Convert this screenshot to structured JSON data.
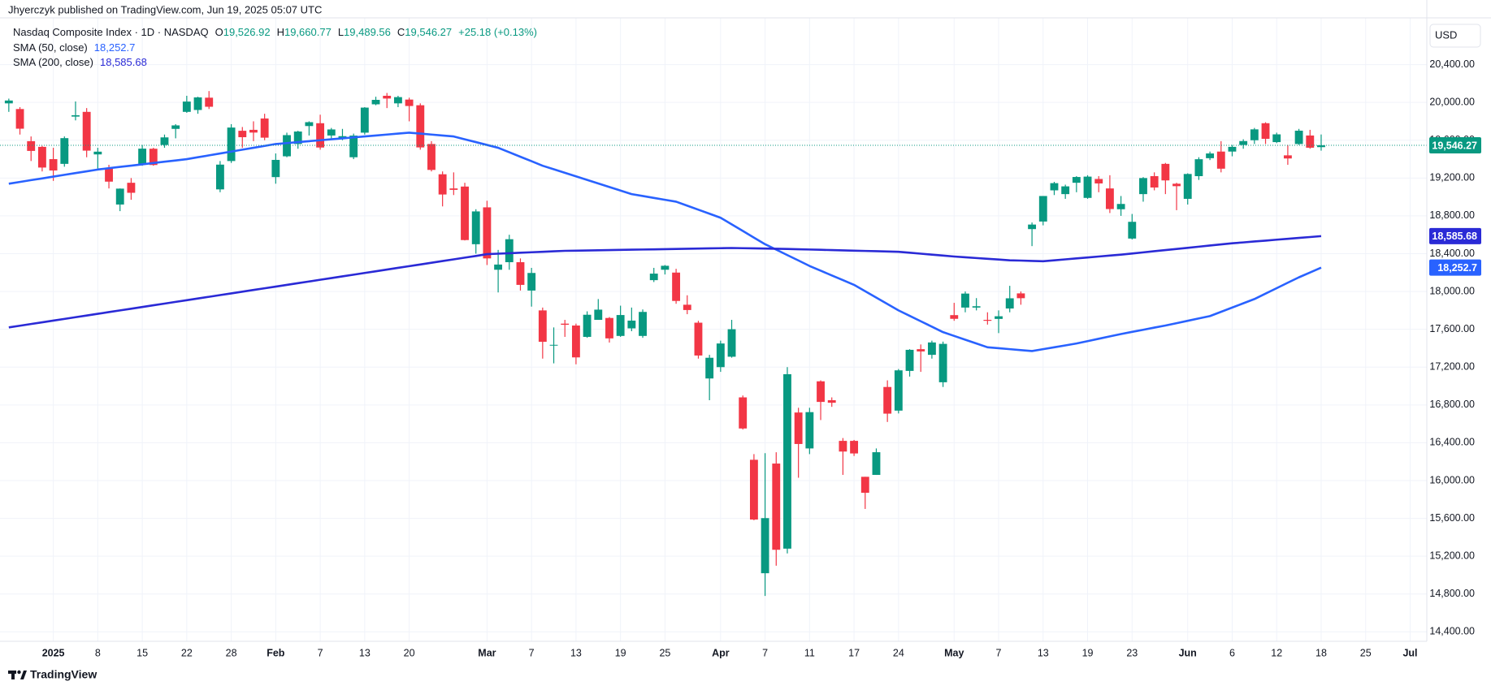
{
  "publisher": "Jhyerczyk published on TradingView.com, Jun 19, 2025 05:07 UTC",
  "currency": "USD",
  "brand": "TradingView",
  "chart_data": {
    "type": "candlestick",
    "symbol": "Nasdaq Composite Index · 1D · NASDAQ",
    "ohlc_legend": [
      {
        "key": "O",
        "text": "19,526.92"
      },
      {
        "key": "H",
        "text": "19,660.77"
      },
      {
        "key": "L",
        "text": "19,489.56"
      },
      {
        "key": "C",
        "text": "19,546.27"
      }
    ],
    "change": "+25.18 (+0.13%)",
    "categories": [
      null,
      null,
      null,
      null,
      "2025",
      null,
      null,
      null,
      "8",
      null,
      null,
      null,
      "15",
      null,
      null,
      null,
      "22",
      null,
      null,
      null,
      "28",
      null,
      null,
      null,
      "Feb",
      null,
      null,
      null,
      "7",
      null,
      null,
      null,
      "13",
      null,
      null,
      null,
      "20",
      null,
      null,
      null,
      null,
      null,
      null,
      "Mar",
      null,
      null,
      null,
      "7",
      null,
      null,
      null,
      "13",
      null,
      null,
      null,
      "19",
      null,
      null,
      null,
      "25",
      null,
      null,
      null,
      null,
      "Apr",
      null,
      null,
      null,
      "7",
      null,
      null,
      null,
      "11",
      null,
      null,
      null,
      "17",
      null,
      null,
      null,
      "24",
      null,
      null,
      null,
      null,
      "May",
      null,
      null,
      null,
      "7",
      null,
      null,
      null,
      "13",
      null,
      null,
      null,
      "19",
      null,
      null,
      null,
      "23",
      null,
      null,
      null,
      null,
      "Jun",
      null,
      null,
      null,
      "6",
      null,
      null,
      null,
      "12",
      null,
      null,
      null,
      "18",
      null,
      null,
      null,
      "25",
      null,
      null,
      null,
      "Jul",
      null
    ],
    "open": [
      19990,
      19930,
      19590,
      19530,
      19400,
      19350,
      19850,
      19900,
      19450,
      19310,
      18920,
      19150,
      19350,
      19510,
      19550,
      19720,
      19900,
      19920,
      20050,
      19080,
      19380,
      19700,
      19710,
      19830,
      19210,
      19430,
      19560,
      19750,
      19780,
      19650,
      19620,
      19420,
      19680,
      19980,
      20070,
      19990,
      20030,
      19970,
      19560,
      19240,
      19090,
      19110,
      18500,
      18890,
      18230,
      18310,
      18310,
      18010,
      17800,
      17430,
      17660,
      17640,
      17520,
      17700,
      17720,
      17530,
      17610,
      17530,
      18120,
      18230,
      18200,
      17860,
      17670,
      17080,
      17200,
      17310,
      16880,
      16220,
      15020,
      16180,
      15280,
      16720,
      16340,
      17050,
      16850,
      16420,
      16420,
      16040,
      16060,
      16990,
      16740,
      17160,
      17390,
      17330,
      17040,
      17750,
      17830,
      17830,
      17700,
      17710,
      17820,
      17980,
      18660,
      18740,
      19070,
      19030,
      19150,
      18990,
      19190,
      19090,
      18870,
      18560,
      19030,
      19220,
      19350,
      19140,
      18980,
      19220,
      19410,
      19480,
      19480,
      19550,
      19600,
      19780,
      19580,
      19440,
      19560,
      19650,
      19526.92,
      null,
      null,
      null,
      null,
      null,
      null,
      null,
      null,
      null
    ],
    "high": [
      20040,
      19950,
      19640,
      19540,
      19520,
      19640,
      20010,
      19940,
      19520,
      19340,
      19090,
      19200,
      19550,
      19520,
      19660,
      19770,
      20070,
      20060,
      20120,
      19380,
      19770,
      19740,
      19800,
      19880,
      19460,
      19680,
      19700,
      19800,
      19870,
      19730,
      19720,
      19670,
      19950,
      20060,
      20100,
      20070,
      20050,
      19990,
      19590,
      19270,
      19260,
      19150,
      18870,
      18960,
      18440,
      18600,
      18350,
      18250,
      17830,
      17620,
      17700,
      17660,
      17790,
      17920,
      17730,
      17850,
      17830,
      17810,
      18250,
      18280,
      18240,
      17960,
      17690,
      17330,
      17480,
      17700,
      16900,
      16280,
      16290,
      16300,
      17200,
      16770,
      16770,
      17060,
      16880,
      16450,
      16430,
      16040,
      16340,
      17060,
      17180,
      17390,
      17440,
      17480,
      17470,
      17880,
      18000,
      17930,
      17780,
      17800,
      18060,
      18000,
      18730,
      19010,
      19160,
      19130,
      19220,
      19230,
      19220,
      19230,
      19010,
      18820,
      19210,
      19260,
      19360,
      19150,
      19250,
      19420,
      19480,
      19590,
      19550,
      19610,
      19730,
      19790,
      19680,
      19550,
      19720,
      19710,
      19660.77,
      null,
      null,
      null,
      null,
      null,
      null,
      null,
      null,
      null
    ],
    "low": [
      19900,
      19660,
      19380,
      19270,
      19170,
      19320,
      19810,
      19420,
      19300,
      19090,
      18850,
      18970,
      19330,
      19330,
      19520,
      19620,
      19890,
      19880,
      19930,
      19050,
      19360,
      19520,
      19590,
      19600,
      19140,
      19420,
      19510,
      19650,
      19500,
      19620,
      19600,
      19400,
      19660,
      19970,
      19940,
      19950,
      19800,
      19500,
      19270,
      18900,
      19020,
      18540,
      18400,
      18280,
      17990,
      18230,
      18010,
      17840,
      17290,
      17240,
      17520,
      17230,
      17510,
      17700,
      17460,
      17520,
      17580,
      17510,
      18100,
      18180,
      17870,
      17760,
      17290,
      16850,
      17150,
      17300,
      16540,
      15580,
      14780,
      15100,
      15230,
      16030,
      16280,
      16640,
      16780,
      16060,
      16260,
      15700,
      16060,
      16620,
      16710,
      17100,
      17150,
      17290,
      16990,
      17690,
      17780,
      17800,
      17650,
      17560,
      17780,
      17860,
      18480,
      18700,
      19020,
      18980,
      19050,
      18980,
      19050,
      18830,
      18800,
      18550,
      18950,
      19070,
      19030,
      18860,
      18920,
      19180,
      19390,
      19260,
      19430,
      19510,
      19560,
      19560,
      19570,
      19340,
      19550,
      19510,
      19489.56,
      null,
      null,
      null,
      null,
      null,
      null,
      null,
      null,
      null
    ],
    "close": [
      20020,
      19722,
      19487,
      19311,
      19280,
      19622,
      19864,
      19490,
      19479,
      19162,
      19088,
      19044,
      19511,
      19338,
      19630,
      19757,
      20009,
      20053,
      19954,
      19342,
      19734,
      19632,
      19681,
      19627,
      19392,
      19654,
      19692,
      19791,
      19523,
      19714,
      19643,
      19649,
      19945,
      20027,
      20041,
      20056,
      19962,
      19524,
      19286,
      19026,
      19075,
      18544,
      18847,
      18350,
      18285,
      18553,
      18070,
      18196,
      17468,
      17436,
      17648,
      17303,
      17754,
      17808,
      17504,
      17751,
      17692,
      17784,
      18189,
      18272,
      17900,
      17804,
      17323,
      17299,
      17450,
      17601,
      16551,
      15588,
      15603,
      15268,
      17125,
      16387,
      16724,
      16832,
      16823,
      16307,
      16287,
      15871,
      16300,
      16708,
      17166,
      17383,
      17366,
      17461,
      17446,
      17711,
      17978,
      17844,
      17690,
      17738,
      17928,
      17929,
      18708,
      19010,
      19146,
      19112,
      19211,
      19215,
      19143,
      18872,
      18926,
      18737,
      19200,
      19100,
      19175,
      19114,
      19243,
      19399,
      19460,
      19299,
      19530,
      19591,
      19715,
      19615,
      19662,
      19407,
      19701,
      19521,
      19546.27,
      null,
      null,
      null,
      null,
      null,
      null,
      null,
      null,
      null
    ],
    "last_value_label": "19,546.27",
    "up_color": "#089981",
    "down_color": "#f23645",
    "lines": [
      {
        "name": "SMA (50, close)",
        "color": "#2962ff",
        "last_value_label": "18,252.7",
        "values": [
          19140,
          19159,
          19178,
          19196,
          19215,
          19234,
          19253,
          19271,
          19290,
          19304,
          19318,
          19331,
          19345,
          19359,
          19373,
          19386,
          19400,
          19420,
          19440,
          19460,
          19480,
          19500,
          19520,
          19540,
          19560,
          19570,
          19580,
          19590,
          19600,
          19610,
          19620,
          19630,
          19640,
          19650,
          19660,
          19670,
          19680,
          19670,
          19660,
          19650,
          19640,
          19610,
          19580,
          19550,
          19520,
          19473,
          19425,
          19378,
          19330,
          19293,
          19255,
          19218,
          19180,
          19143,
          19105,
          19068,
          19030,
          19010,
          18990,
          18970,
          18950,
          18908,
          18865,
          18823,
          18780,
          18710,
          18640,
          18570,
          18500,
          18443,
          18385,
          18328,
          18270,
          18220,
          18170,
          18120,
          18070,
          18003,
          17935,
          17868,
          17800,
          17743,
          17685,
          17628,
          17570,
          17530,
          17490,
          17450,
          17410,
          17400,
          17390,
          17380,
          17370,
          17390,
          17410,
          17430,
          17450,
          17475,
          17500,
          17525,
          17550,
          17573,
          17595,
          17618,
          17640,
          17665,
          17690,
          17715,
          17740,
          17785,
          17830,
          17875,
          17920,
          17978,
          18035,
          18093,
          18150,
          18201,
          18252.7,
          null,
          null,
          null,
          null,
          null,
          null,
          null,
          null,
          null
        ]
      },
      {
        "name": "SMA (200, close)",
        "color": "#2a2ad6",
        "last_value_label": "18,585.68",
        "values": [
          17620,
          17638,
          17656,
          17674,
          17692,
          17710,
          17728,
          17746,
          17764,
          17782,
          17800,
          17818,
          17836,
          17854,
          17872,
          17890,
          17908,
          17926,
          17944,
          17962,
          17980,
          17998,
          18016,
          18034,
          18052,
          18070,
          18088,
          18106,
          18124,
          18142,
          18160,
          18178,
          18196,
          18214,
          18232,
          18250,
          18268,
          18286,
          18304,
          18322,
          18340,
          18358,
          18376,
          18395,
          18400,
          18405,
          18410,
          18415,
          18420,
          18425,
          18430,
          18432,
          18434,
          18436,
          18438,
          18440,
          18442,
          18444,
          18446,
          18448,
          18450,
          18452,
          18454,
          18456,
          18458,
          18460,
          18458,
          18456,
          18454,
          18452,
          18450,
          18447,
          18444,
          18441,
          18438,
          18435,
          18432,
          18429,
          18426,
          18423,
          18420,
          18410,
          18400,
          18390,
          18380,
          18370,
          18362,
          18354,
          18346,
          18338,
          18330,
          18327,
          18323,
          18320,
          18330,
          18340,
          18350,
          18360,
          18370,
          18380,
          18390,
          18402,
          18414,
          18426,
          18438,
          18450,
          18462,
          18474,
          18486,
          18498,
          18510,
          18519,
          18529,
          18538,
          18548,
          18557,
          18567,
          18576,
          18585.68,
          null,
          null,
          null,
          null,
          null,
          null,
          null,
          null,
          null
        ]
      }
    ],
    "ylim": [
      14300,
      20860
    ],
    "yticks": [
      {
        "value": 14400,
        "label": "14,400.00"
      },
      {
        "value": 14800,
        "label": "14,800.00"
      },
      {
        "value": 15200,
        "label": "15,200.00"
      },
      {
        "value": 15600,
        "label": "15,600.00"
      },
      {
        "value": 16000,
        "label": "16,000.00"
      },
      {
        "value": 16400,
        "label": "16,400.00"
      },
      {
        "value": 16800,
        "label": "16,800.00"
      },
      {
        "value": 17200,
        "label": "17,200.00"
      },
      {
        "value": 17600,
        "label": "17,600.00"
      },
      {
        "value": 18000,
        "label": "18,000.00"
      },
      {
        "value": 18400,
        "label": "18,400.00"
      },
      {
        "value": 18800,
        "label": "18,800.00"
      },
      {
        "value": 19200,
        "label": "19,200.00"
      },
      {
        "value": 19600,
        "label": "19,600.00"
      },
      {
        "value": 20000,
        "label": "20,000.00"
      },
      {
        "value": 20400,
        "label": "20,400.00"
      }
    ],
    "grid": true
  }
}
